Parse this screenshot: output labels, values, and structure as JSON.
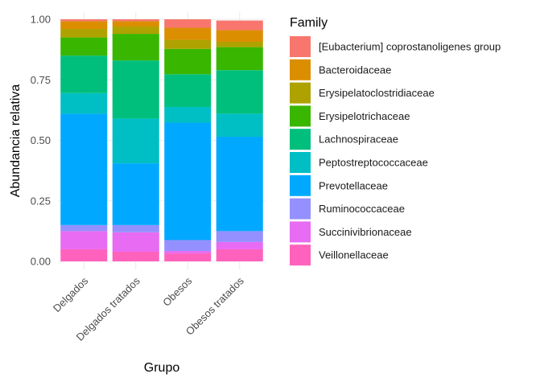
{
  "chart_data": {
    "type": "bar",
    "stacked": true,
    "title": "",
    "xlabel": "Grupo",
    "ylabel": "Abundancia relativa",
    "ylim": [
      0,
      1
    ],
    "yticks": [
      "0.00",
      "0.25",
      "0.50",
      "0.75",
      "1.00"
    ],
    "ytick_values": [
      0,
      0.25,
      0.5,
      0.75,
      1.0
    ],
    "grid": true,
    "legend_position": "right",
    "legend_title": "Family",
    "categories": [
      "Delgados",
      "Delgados tratados",
      "Obesos",
      "Obesos tratados"
    ],
    "series": [
      {
        "name": "[Eubacterium] coprostanoligenes group",
        "color": "#F8766D",
        "values": [
          0.008,
          0.008,
          0.035,
          0.04
        ]
      },
      {
        "name": "Bacteroidaceae",
        "color": "#DB8E00",
        "values": [
          0.032,
          0.022,
          0.05,
          0.048
        ]
      },
      {
        "name": "Erysipelatoclostridiaceae",
        "color": "#AEA200",
        "values": [
          0.035,
          0.03,
          0.037,
          0.022
        ]
      },
      {
        "name": "Erysipelotrichaceae",
        "color": "#39B600",
        "values": [
          0.075,
          0.11,
          0.105,
          0.095
        ]
      },
      {
        "name": "Lachnospiraceae",
        "color": "#00BF7D",
        "values": [
          0.155,
          0.24,
          0.135,
          0.18
        ]
      },
      {
        "name": "Peptostreptococcaceae",
        "color": "#00BFC4",
        "values": [
          0.085,
          0.185,
          0.065,
          0.095
        ]
      },
      {
        "name": "Prevotellaceae",
        "color": "#00A9FF",
        "values": [
          0.46,
          0.255,
          0.485,
          0.39
        ]
      },
      {
        "name": "Ruminococcaceae",
        "color": "#9590FF",
        "values": [
          0.025,
          0.03,
          0.045,
          0.045
        ]
      },
      {
        "name": "Succinivibrionaceae",
        "color": "#E76BF3",
        "values": [
          0.075,
          0.08,
          0.01,
          0.03
        ]
      },
      {
        "name": "Veillonellaceae",
        "color": "#FF62BC",
        "values": [
          0.05,
          0.04,
          0.033,
          0.05
        ]
      }
    ]
  }
}
